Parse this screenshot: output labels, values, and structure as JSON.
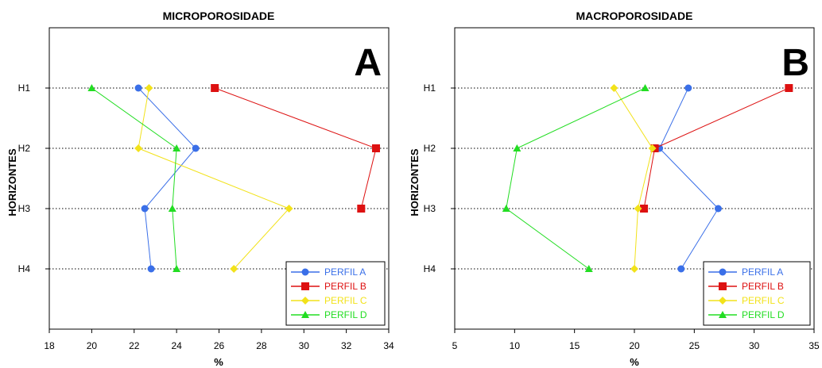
{
  "chart_data": [
    {
      "type": "line",
      "title": "MICROPOROSIDADE",
      "panel_label": "A",
      "xlabel": "%",
      "ylabel": "HORIZONTES",
      "xlim": [
        18,
        34
      ],
      "xticks": [
        18,
        20,
        22,
        24,
        26,
        28,
        30,
        32,
        34
      ],
      "categories": [
        "H1",
        "H2",
        "H3",
        "H4"
      ],
      "legend_position": "bottom-right",
      "grid": "horizontal dotted",
      "series": [
        {
          "name": "PERFIL A",
          "color": "#3a6fe8",
          "marker": "circle",
          "values": [
            22.2,
            24.9,
            22.5,
            22.8
          ]
        },
        {
          "name": "PERFIL B",
          "color": "#dd1111",
          "marker": "square",
          "values": [
            25.8,
            33.4,
            32.7,
            null
          ]
        },
        {
          "name": "PERFIL C",
          "color": "#f2e21a",
          "marker": "diamond",
          "values": [
            22.7,
            22.2,
            29.3,
            26.7
          ]
        },
        {
          "name": "PERFIL D",
          "color": "#22dd22",
          "marker": "triangle",
          "values": [
            20.0,
            24.0,
            23.8,
            24.0
          ]
        }
      ]
    },
    {
      "type": "line",
      "title": "MACROPOROSIDADE",
      "panel_label": "B",
      "xlabel": "%",
      "ylabel": "HORIZONTES",
      "xlim": [
        5,
        35
      ],
      "xticks": [
        5,
        10,
        15,
        20,
        25,
        30,
        35
      ],
      "categories": [
        "H1",
        "H2",
        "H3",
        "H4"
      ],
      "legend_position": "bottom-right",
      "grid": "horizontal dotted",
      "series": [
        {
          "name": "PERFIL A",
          "color": "#3a6fe8",
          "marker": "circle",
          "values": [
            24.5,
            22.1,
            27.0,
            23.9
          ]
        },
        {
          "name": "PERFIL B",
          "color": "#dd1111",
          "marker": "square",
          "values": [
            32.9,
            21.7,
            20.8,
            null
          ]
        },
        {
          "name": "PERFIL C",
          "color": "#f2e21a",
          "marker": "diamond",
          "values": [
            18.3,
            21.5,
            20.3,
            20.0
          ]
        },
        {
          "name": "PERFIL D",
          "color": "#22dd22",
          "marker": "triangle",
          "values": [
            20.9,
            10.2,
            9.3,
            16.2
          ]
        }
      ]
    }
  ]
}
